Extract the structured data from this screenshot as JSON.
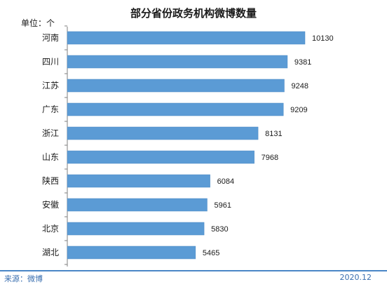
{
  "chart_data": {
    "type": "bar",
    "orientation": "horizontal",
    "title": "部分省份政务机构微博数量",
    "unit_label": "单位：个",
    "categories": [
      "河南",
      "四川",
      "江苏",
      "广东",
      "浙江",
      "山东",
      "陕西",
      "安徽",
      "北京",
      "湖北"
    ],
    "values": [
      10130,
      9381,
      9248,
      9209,
      8131,
      7968,
      6084,
      5961,
      5830,
      5465
    ],
    "xlim": [
      0,
      10130
    ],
    "grid": false,
    "legend": "none",
    "bar_color": "#5b9bd5"
  },
  "footer": {
    "source": "来源：微博",
    "date": "2020.12",
    "accent_color": "#4a86c6"
  }
}
